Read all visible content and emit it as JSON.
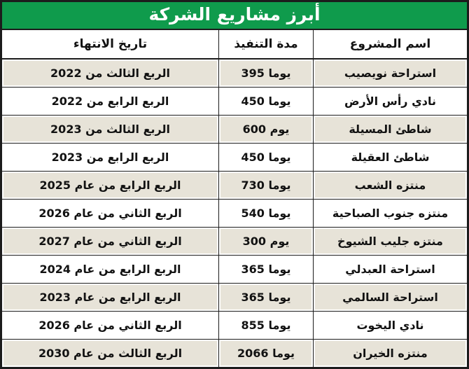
{
  "title": "أبرز مشاريع الشركة",
  "colors": {
    "header_green": "#0f9b4c",
    "border": "#1c1c1c",
    "row_alt_beige": "#e7e3d8",
    "title_text": "#ffffff"
  },
  "table": {
    "columns": {
      "project": "اسم المشروع",
      "duration": "مدة التنفيذ",
      "end_date": "تاريخ الانتهاء"
    },
    "rows": [
      {
        "project": "استراحة نويصيب",
        "duration": "395 يوما",
        "end_date": "الربع الثالث من 2022"
      },
      {
        "project": "نادي رأس الأرض",
        "duration": "450 يوما",
        "end_date": "الربع الرابع من 2022"
      },
      {
        "project": "شاطئ المسيلة",
        "duration": "600 يوم",
        "end_date": "الربع الثالث من 2023"
      },
      {
        "project": "شاطئ العقيلة",
        "duration": "450 يوما",
        "end_date": "الربع الرابع من 2023"
      },
      {
        "project": "منتزه الشعب",
        "duration": "730 يوما",
        "end_date": "الربع الرابع من عام 2025"
      },
      {
        "project": "منتزه جنوب الصباحية",
        "duration": "540 يوما",
        "end_date": "الربع الثاني من عام 2026"
      },
      {
        "project": "منتزه جليب الشيوخ",
        "duration": "300 يوم",
        "end_date": "الربع الثاني من عام 2027"
      },
      {
        "project": "استراحة العبدلي",
        "duration": "365 يوما",
        "end_date": "الربع الرابع من عام 2024"
      },
      {
        "project": "استراحة السالمي",
        "duration": "365 يوما",
        "end_date": "الربع الرابع من عام 2023"
      },
      {
        "project": "نادي اليخوت",
        "duration": "855 يوما",
        "end_date": "الربع الثاني من عام 2026"
      },
      {
        "project": "منتزه الخيران",
        "duration": "2066 يوما",
        "end_date": "الربع الثالث من عام 2030"
      }
    ]
  }
}
